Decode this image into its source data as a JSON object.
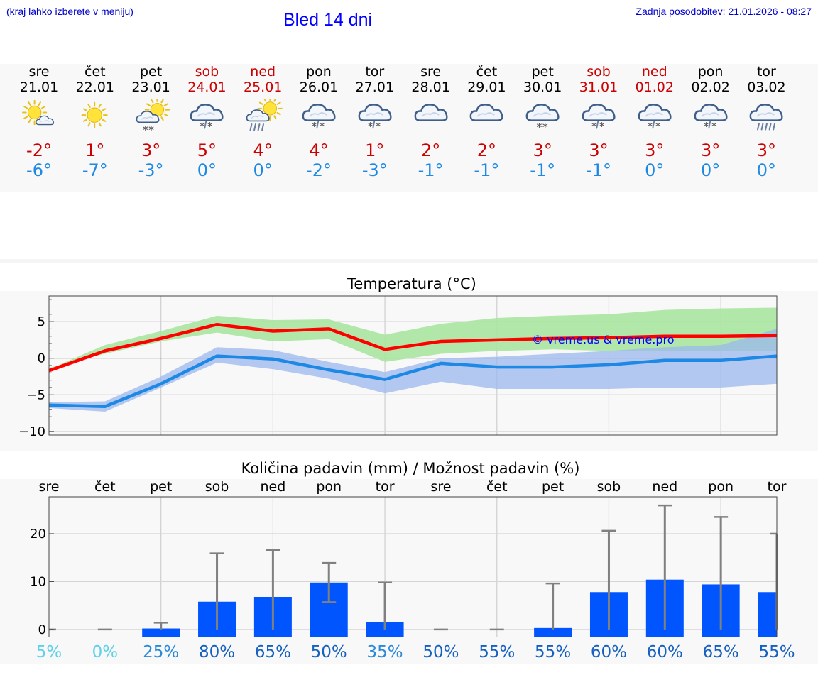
{
  "header": {
    "hint": "(kraj lahko izberete v meniju)",
    "title": "Bled 14 dni",
    "updated": "Zadnja posodobitev: 21.01.2026 - 08:27"
  },
  "days": [
    {
      "name": "sre",
      "date": "21.01",
      "weekend": false,
      "icon": "sun-cloud-icon",
      "tmax": "-2°",
      "tmin": "-6°"
    },
    {
      "name": "čet",
      "date": "22.01",
      "weekend": false,
      "icon": "sun-icon",
      "tmax": "1°",
      "tmin": "-7°"
    },
    {
      "name": "pet",
      "date": "23.01",
      "weekend": false,
      "icon": "sun-cloud-snow-icon",
      "tmax": "3°",
      "tmin": "-3°"
    },
    {
      "name": "sob",
      "date": "24.01",
      "weekend": true,
      "icon": "cloud-sleet-icon",
      "tmax": "5°",
      "tmin": "0°"
    },
    {
      "name": "ned",
      "date": "25.01",
      "weekend": true,
      "icon": "sun-cloud-rain-icon",
      "tmax": "4°",
      "tmin": "0°"
    },
    {
      "name": "pon",
      "date": "26.01",
      "weekend": false,
      "icon": "cloud-sleet-icon",
      "tmax": "4°",
      "tmin": "-2°"
    },
    {
      "name": "tor",
      "date": "27.01",
      "weekend": false,
      "icon": "cloud-sleet-icon",
      "tmax": "1°",
      "tmin": "-3°"
    },
    {
      "name": "sre",
      "date": "28.01",
      "weekend": false,
      "icon": "cloud-icon",
      "tmax": "2°",
      "tmin": "-1°"
    },
    {
      "name": "čet",
      "date": "29.01",
      "weekend": false,
      "icon": "cloud-icon",
      "tmax": "2°",
      "tmin": "-1°"
    },
    {
      "name": "pet",
      "date": "30.01",
      "weekend": false,
      "icon": "cloud-snow-icon",
      "tmax": "3°",
      "tmin": "-1°"
    },
    {
      "name": "sob",
      "date": "31.01",
      "weekend": true,
      "icon": "cloud-sleet-icon",
      "tmax": "3°",
      "tmin": "-1°"
    },
    {
      "name": "ned",
      "date": "01.02",
      "weekend": true,
      "icon": "cloud-sleet-icon",
      "tmax": "3°",
      "tmin": "0°"
    },
    {
      "name": "pon",
      "date": "02.02",
      "weekend": false,
      "icon": "cloud-sleet-icon",
      "tmax": "3°",
      "tmin": "0°"
    },
    {
      "name": "tor",
      "date": "03.02",
      "weekend": false,
      "icon": "cloud-rain-icon",
      "tmax": "3°",
      "tmin": "0°"
    }
  ],
  "colors": {
    "max_line": "#ff0000",
    "min_line": "#1e88e5",
    "max_band": "#a8e6a0",
    "min_band": "#9bb8ee",
    "bar": "#0055ff",
    "whisker": "#808080",
    "watermark": "#0000ff"
  },
  "chart_data": [
    {
      "type": "line",
      "title": "Temperatura (°C)",
      "watermark": "© vreme.us & vreme.pro",
      "ylim": [
        -10.5,
        8.5
      ],
      "yticks": [
        5,
        0,
        -5,
        -10
      ],
      "ytick_labels": [
        "5",
        "0",
        "−5",
        "−10"
      ],
      "series": [
        {
          "name": "max",
          "values": [
            -1.7,
            1.0,
            2.7,
            4.6,
            3.7,
            4.0,
            1.2,
            2.3,
            2.5,
            2.7,
            2.8,
            3.0,
            3.0,
            3.1
          ],
          "band_low": [
            -1.3,
            0.6,
            2.3,
            3.5,
            2.3,
            2.6,
            -0.5,
            0.6,
            1.0,
            1.2,
            1.0,
            1.0,
            1.0,
            1.0
          ],
          "band_high": [
            -1.5,
            1.8,
            3.7,
            5.8,
            5.2,
            5.3,
            3.2,
            4.7,
            5.5,
            5.8,
            6.0,
            6.6,
            6.8,
            6.9
          ]
        },
        {
          "name": "min",
          "values": [
            -6.4,
            -6.6,
            -3.5,
            0.3,
            -0.1,
            -1.6,
            -2.9,
            -0.7,
            -1.2,
            -1.2,
            -0.9,
            -0.3,
            -0.3,
            0.3
          ],
          "band_low": [
            -6.8,
            -7.3,
            -4.0,
            -0.6,
            -1.5,
            -2.8,
            -4.8,
            -3.2,
            -4.2,
            -4.2,
            -4.2,
            -4.0,
            -4.0,
            -3.5
          ],
          "band_high": [
            -6.0,
            -5.9,
            -2.5,
            1.5,
            1.1,
            -0.5,
            -1.9,
            0.0,
            0.2,
            0.6,
            1.0,
            1.5,
            1.8,
            4.0
          ]
        }
      ]
    },
    {
      "type": "bar",
      "title": "Količina padavin (mm) / Možnost padavin (%)",
      "categories": [
        "sre",
        "čet",
        "pet",
        "sob",
        "ned",
        "pon",
        "tor",
        "sre",
        "čet",
        "pet",
        "sob",
        "ned",
        "pon",
        "tor"
      ],
      "ylim": [
        -1.5,
        27.7
      ],
      "yticks": [
        20,
        10,
        0
      ],
      "ytick_labels": [
        "20",
        "10",
        "0"
      ],
      "values": [
        0,
        0,
        0.2,
        5.8,
        6.8,
        9.8,
        1.6,
        0,
        0,
        0.3,
        7.8,
        10.4,
        9.4,
        7.8
      ],
      "error_low": [
        0,
        0,
        0,
        0,
        0,
        5.7,
        0,
        0,
        0,
        0,
        0,
        0,
        0,
        0
      ],
      "error_high": [
        0,
        0,
        1.4,
        15.9,
        16.6,
        13.9,
        9.8,
        0,
        0,
        9.6,
        20.6,
        25.9,
        23.5,
        20.0
      ],
      "probability": [
        "5%",
        "0%",
        "25%",
        "80%",
        "65%",
        "50%",
        "35%",
        "50%",
        "55%",
        "55%",
        "60%",
        "60%",
        "65%",
        "55%"
      ],
      "probability_values": [
        5,
        0,
        25,
        80,
        65,
        50,
        35,
        50,
        55,
        55,
        60,
        60,
        65,
        55
      ]
    }
  ]
}
